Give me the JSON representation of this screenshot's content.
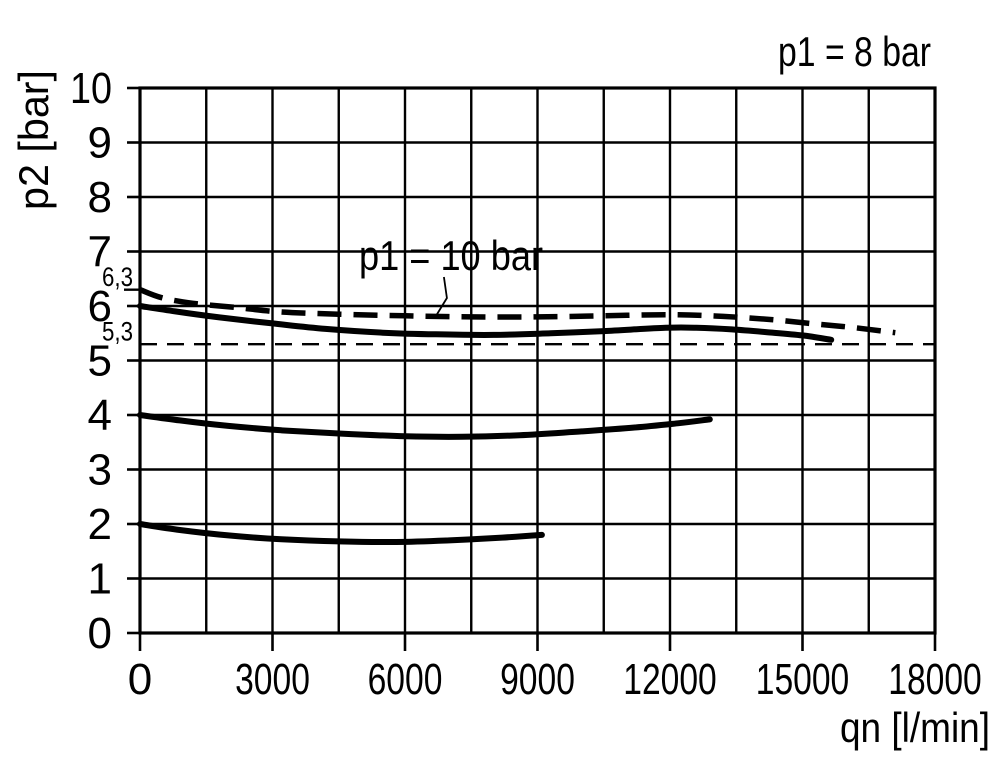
{
  "page": {
    "background": "#ffffff",
    "ink": "#000000"
  },
  "chart_data": {
    "type": "line",
    "title": "p1 = 8 bar",
    "xlabel": "qn [l/min]",
    "ylabel": "p2 [bar]",
    "xlim": [
      0,
      18000
    ],
    "ylim": [
      0,
      10
    ],
    "x_grid_step": 1500,
    "y_grid_step": 1,
    "grid": true,
    "x_ticks": [
      0,
      3000,
      6000,
      9000,
      12000,
      15000,
      18000
    ],
    "x_tick_labels": [
      "0",
      "3000",
      "6000",
      "9000",
      "12000",
      "15000",
      "18000"
    ],
    "y_ticks": [
      0,
      1,
      2,
      3,
      4,
      5,
      6,
      7,
      8,
      9,
      10
    ],
    "y_tick_labels": [
      "0",
      "1",
      "2",
      "3",
      "4",
      "5",
      "6",
      "7",
      "8",
      "9",
      "10"
    ],
    "annotation": {
      "text": "p1 = 10 bar",
      "target_x": 6700,
      "target_y": 5.78
    },
    "reference_marks": [
      {
        "label": "6,3",
        "y": 6.3,
        "style": "axis-tick"
      },
      {
        "label": "5,3",
        "y": 5.3,
        "style": "dashed-line"
      }
    ],
    "series": [
      {
        "id": "p1-10bar-inlet",
        "name": "p1 = 10 bar",
        "line": "dashed",
        "points": [
          [
            0,
            6.3
          ],
          [
            500,
            6.15
          ],
          [
            1200,
            6.05
          ],
          [
            2200,
            5.97
          ],
          [
            3200,
            5.89
          ],
          [
            4500,
            5.85
          ],
          [
            6000,
            5.82
          ],
          [
            7500,
            5.8
          ],
          [
            9000,
            5.8
          ],
          [
            10500,
            5.82
          ],
          [
            12000,
            5.84
          ],
          [
            13200,
            5.81
          ],
          [
            14300,
            5.75
          ],
          [
            15300,
            5.67
          ],
          [
            16200,
            5.6
          ],
          [
            17100,
            5.51
          ]
        ]
      },
      {
        "id": "curve-set-6bar",
        "name": "",
        "line": "solid",
        "points": [
          [
            0,
            6.0
          ],
          [
            800,
            5.9
          ],
          [
            1800,
            5.79
          ],
          [
            3000,
            5.68
          ],
          [
            4200,
            5.58
          ],
          [
            5500,
            5.51
          ],
          [
            6700,
            5.48
          ],
          [
            8000,
            5.47
          ],
          [
            9300,
            5.5
          ],
          [
            10500,
            5.54
          ],
          [
            11900,
            5.6
          ],
          [
            12600,
            5.6
          ],
          [
            13400,
            5.57
          ],
          [
            14200,
            5.52
          ],
          [
            15000,
            5.46
          ],
          [
            15650,
            5.38
          ]
        ]
      },
      {
        "id": "curve-set-4bar",
        "name": "",
        "line": "solid",
        "points": [
          [
            0,
            4.0
          ],
          [
            900,
            3.9
          ],
          [
            2000,
            3.8
          ],
          [
            3200,
            3.72
          ],
          [
            4500,
            3.66
          ],
          [
            6000,
            3.61
          ],
          [
            7300,
            3.6
          ],
          [
            8600,
            3.63
          ],
          [
            10000,
            3.7
          ],
          [
            11200,
            3.77
          ],
          [
            12200,
            3.85
          ],
          [
            12900,
            3.92
          ]
        ]
      },
      {
        "id": "curve-set-2bar",
        "name": "",
        "line": "solid",
        "points": [
          [
            0,
            2.0
          ],
          [
            900,
            1.89
          ],
          [
            2000,
            1.79
          ],
          [
            3200,
            1.72
          ],
          [
            4500,
            1.68
          ],
          [
            5800,
            1.67
          ],
          [
            7000,
            1.7
          ],
          [
            8200,
            1.75
          ],
          [
            9100,
            1.8
          ]
        ]
      }
    ]
  }
}
